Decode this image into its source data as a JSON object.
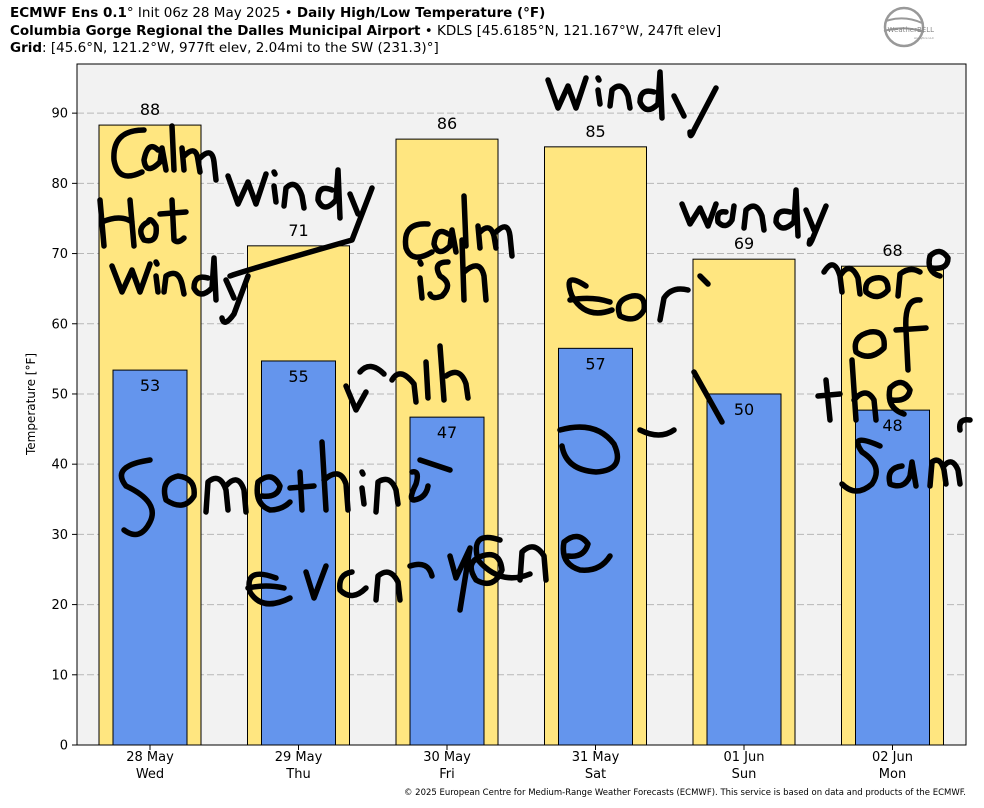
{
  "header": {
    "line1_model": "ECMWF Ens 0.1",
    "line1_deg": "°",
    "line1_init": " Init 06z 28 May 2025",
    "line1_sep": " • ",
    "line1_product": "Daily High/Low Temperature (°F)",
    "line2_station": "Columbia Gorge Regional the Dalles Municipal Airport",
    "line2_rest": " • KDLS [45.6185°N, 121.167°W, 247ft elev]",
    "line3_label": "Grid",
    "line3_rest": ": [45.6°N, 121.2°W, 977ft elev, 2.04mi to the SW (231.3)°]"
  },
  "logo": {
    "text": "WeatherBELL",
    "subtext": "Analytics LLC"
  },
  "footer": "© 2025 European Centre for Medium-Range Weather Forecasts (ECMWF). This service is based on data and products of the ECMWF.",
  "chart_data": {
    "type": "bar",
    "ylabel": "Temperature [°F]",
    "ylim": [
      0,
      97
    ],
    "yticks": [
      "0",
      "10",
      "20",
      "30",
      "40",
      "50",
      "60",
      "70",
      "80",
      "90"
    ],
    "categories": [
      {
        "date": "28 May",
        "day": "Wed"
      },
      {
        "date": "29 May",
        "day": "Thu"
      },
      {
        "date": "30 May",
        "day": "Fri"
      },
      {
        "date": "31 May",
        "day": "Sat"
      },
      {
        "date": "01 Jun",
        "day": "Sun"
      },
      {
        "date": "02 Jun",
        "day": "Mon"
      }
    ],
    "series": [
      {
        "key": "high",
        "values": [
          88.3,
          71.1,
          86.3,
          85.2,
          69.2,
          68.2
        ],
        "labels": [
          "88",
          "71",
          "86",
          "85",
          "69",
          "68"
        ],
        "color": "#ffe680"
      },
      {
        "key": "low",
        "values": [
          53.4,
          54.7,
          46.7,
          56.5,
          50.0,
          47.7
        ],
        "labels": [
          "53",
          "55",
          "47",
          "57",
          "50",
          "48"
        ],
        "color": "#6495ed"
      }
    ],
    "grid": true,
    "plot_background": "#f2f2f2",
    "annotations": [
      "Calm",
      "Hot",
      "windy",
      "windy",
      "Calm",
      "ish",
      "windy",
      "Something for",
      "everyone",
      "windy",
      "more of the same"
    ]
  }
}
